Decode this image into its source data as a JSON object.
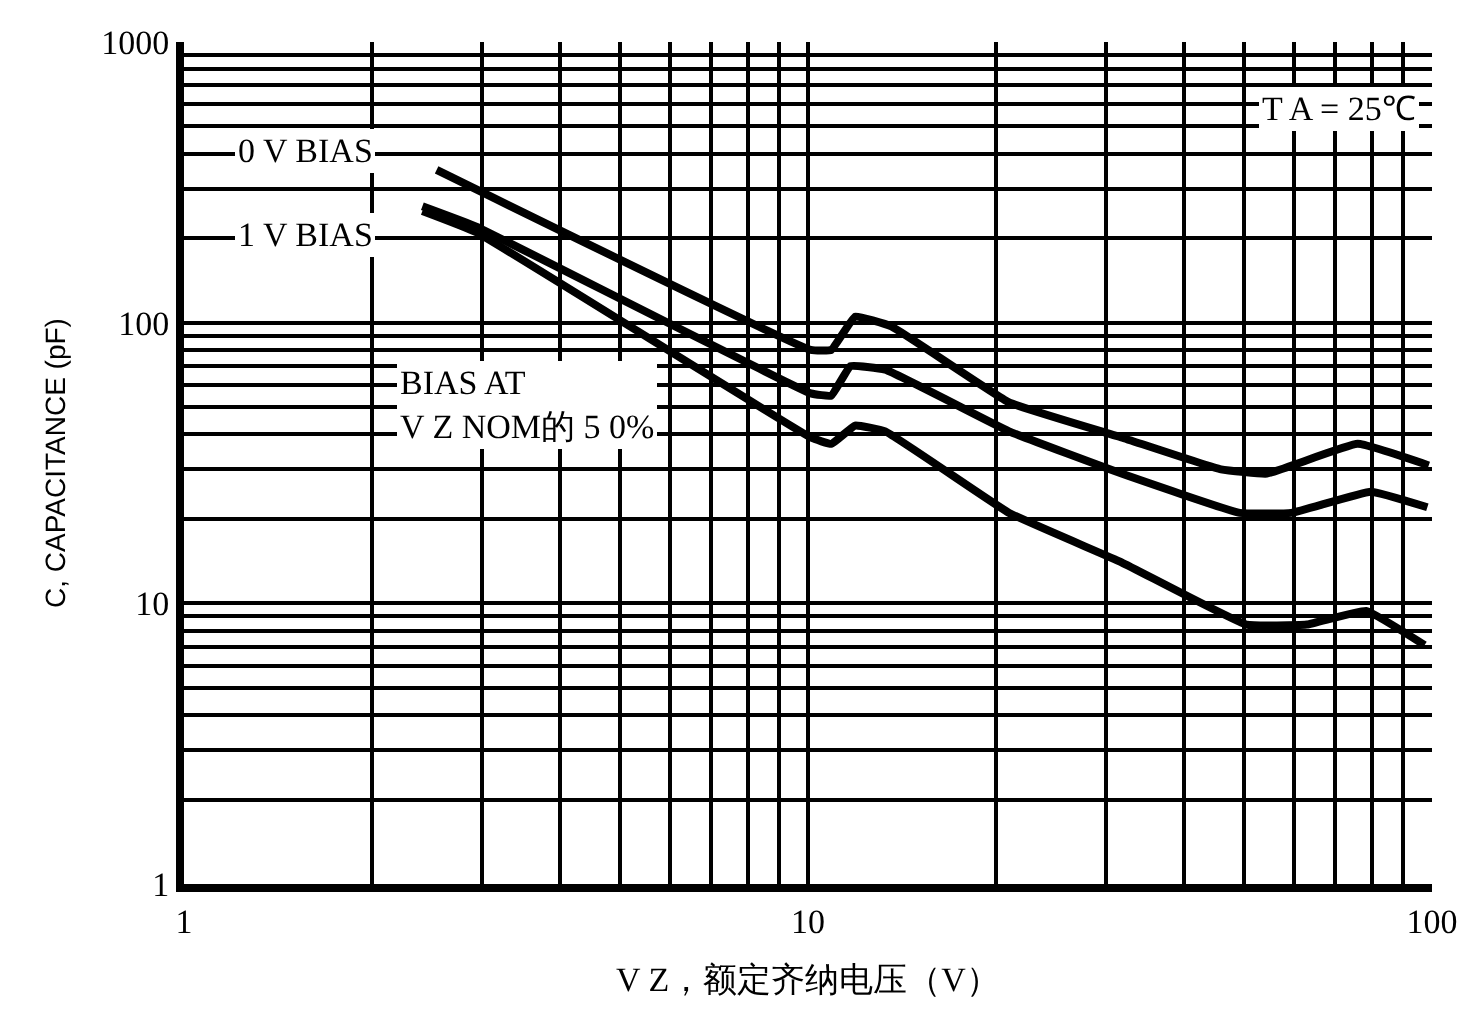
{
  "chart_data": {
    "type": "line",
    "xlabel": "V Z，额定齐纳电压（V）",
    "ylabel": "C, CAPACITANCE (pF)",
    "log": "xy",
    "grid": true,
    "legend": false,
    "marker": "none",
    "line_style": "solid",
    "xlim": [
      1,
      100
    ],
    "ylim": [
      1,
      1000
    ],
    "xticks": [
      1,
      {
        "value": 2,
        "label": null
      },
      {
        "value": 3,
        "label": null
      },
      {
        "value": 4,
        "label": null
      },
      {
        "value": 5,
        "label": null
      },
      {
        "value": 6,
        "label": null
      },
      {
        "value": 7,
        "label": null
      },
      {
        "value": 8,
        "label": null
      },
      {
        "value": 9,
        "label": null
      },
      10,
      {
        "value": 20,
        "label": null
      },
      {
        "value": 30,
        "label": null
      },
      {
        "value": 40,
        "label": null
      },
      {
        "value": 50,
        "label": null
      },
      {
        "value": 60,
        "label": null
      },
      {
        "value": 70,
        "label": null
      },
      {
        "value": 80,
        "label": null
      },
      {
        "value": 90,
        "label": null
      },
      100
    ],
    "yticks": [
      1,
      {
        "value": 2,
        "label": null
      },
      {
        "value": 3,
        "label": null
      },
      {
        "value": 4,
        "label": null
      },
      {
        "value": 5,
        "label": null
      },
      {
        "value": 6,
        "label": null
      },
      {
        "value": 7,
        "label": null
      },
      {
        "value": 8,
        "label": null
      },
      {
        "value": 9,
        "label": null
      },
      10,
      {
        "value": 20,
        "label": null
      },
      {
        "value": 30,
        "label": null
      },
      {
        "value": 40,
        "label": null
      },
      {
        "value": 50,
        "label": null
      },
      {
        "value": 60,
        "label": null
      },
      {
        "value": 70,
        "label": null
      },
      {
        "value": 80,
        "label": null
      },
      {
        "value": 90,
        "label": null
      },
      100,
      {
        "value": 200,
        "label": null
      },
      {
        "value": 300,
        "label": null
      },
      {
        "value": 400,
        "label": null
      },
      {
        "value": 500,
        "label": null
      },
      {
        "value": 600,
        "label": null
      },
      {
        "value": 700,
        "label": null
      },
      {
        "value": 800,
        "label": null
      },
      {
        "value": 900,
        "label": null
      },
      1000
    ],
    "series": [
      {
        "name": "0 V BIAS",
        "color": "#000000",
        "x": [
          2.54,
          10.1,
          10.9,
          11.9,
          13.6,
          21,
          31.8,
          45.9,
          54.4,
          76,
          98.8
        ],
        "values": [
          350,
          80,
          80,
          105,
          97,
          52,
          39,
          30,
          29,
          37,
          31
        ]
      },
      {
        "name": "1 V BIAS",
        "color": "#000000",
        "x": [
          2.41,
          2.94,
          10.1,
          10.9,
          11.7,
          13.3,
          21,
          31.8,
          49.2,
          59.5,
          79.8,
          98.3
        ],
        "values": [
          260,
          220,
          56,
          55,
          70,
          68,
          41,
          29,
          21,
          21,
          25,
          22
        ]
      },
      {
        "name": "BIAS AT\nV Z NOM的 5 0%",
        "color": "#000000",
        "x": [
          2.41,
          2.94,
          10.1,
          10.9,
          11.9,
          13.3,
          21,
          31.8,
          50.4,
          63,
          78.4,
          97.3
        ],
        "values": [
          250,
          210,
          39,
          37,
          43,
          41,
          21,
          14,
          8.4,
          8.4,
          9.4,
          7.1
        ]
      }
    ],
    "annotations": [
      "T A = 25℃"
    ]
  }
}
